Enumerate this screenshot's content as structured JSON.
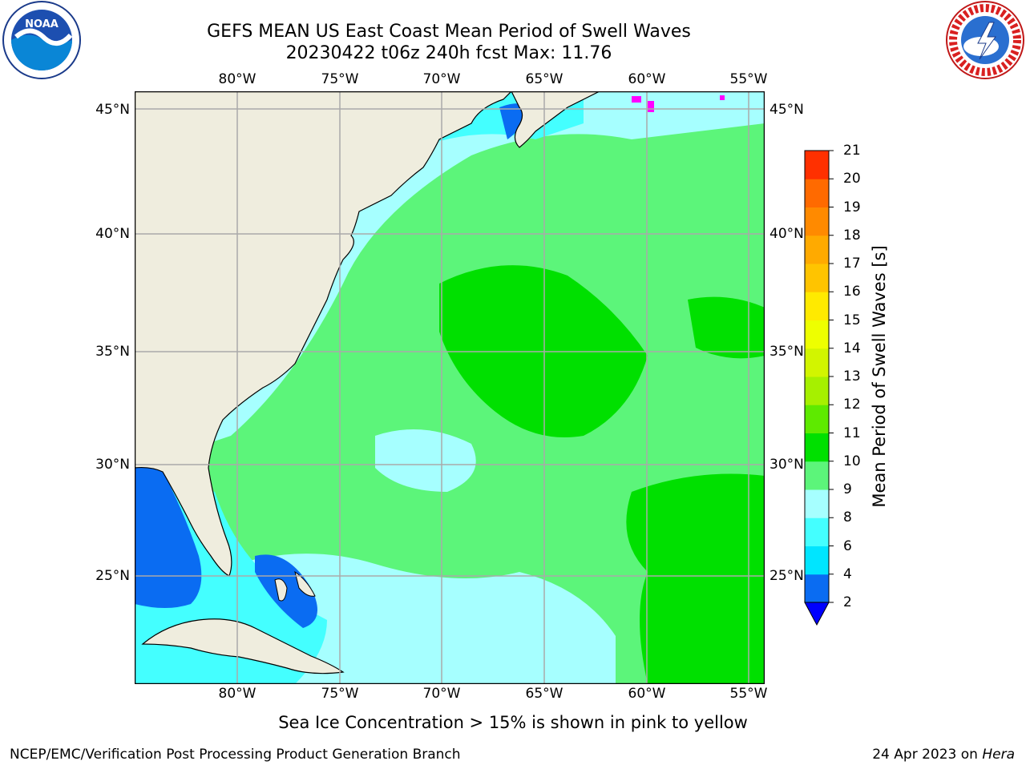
{
  "header": {
    "title_line1": "GEFS MEAN US East Coast Mean Period of Swell Waves",
    "title_line2": "20230422 t06z 240h fcst   Max: 11.76"
  },
  "logos": {
    "left": {
      "name": "noaa-logo",
      "text": "NOAA",
      "ring_text": "NATIONAL OCEANIC AND ATMOSPHERIC ADMINISTRATION · U.S. DEPARTMENT OF COMMERCE"
    },
    "right": {
      "name": "nws-logo",
      "ring_text": "NATIONAL WEATHER SERVICE"
    }
  },
  "map": {
    "lon_labels": [
      "80°W",
      "75°W",
      "70°W",
      "65°W",
      "60°W",
      "55°W"
    ],
    "lat_labels": [
      "45°N",
      "40°N",
      "35°N",
      "30°N",
      "25°N"
    ],
    "land_color": "#efedde",
    "ocean_color": "#66ff66",
    "ice_color": "#ff00ff"
  },
  "colorbar": {
    "label": "Mean Period of Swell Waves [s]",
    "ticks": [
      "2",
      "4",
      "6",
      "8",
      "9",
      "10",
      "11",
      "12",
      "13",
      "14",
      "15",
      "16",
      "17",
      "18",
      "19",
      "20",
      "21"
    ],
    "colors": [
      "#0a6cf2",
      "#00e5ff",
      "#44ffff",
      "#a6ffff",
      "#5cf57a",
      "#00e000",
      "#5eea00",
      "#a6f000",
      "#d2f500",
      "#eeff00",
      "#ffea00",
      "#ffc400",
      "#ffaa00",
      "#ff8a00",
      "#ff6a00",
      "#ff3000"
    ],
    "extend_color": "#0000ff"
  },
  "caption": "Sea Ice Concentration > 15% is shown in pink to yellow",
  "footer": {
    "left": "NCEP/EMC/Verification Post Processing Product Generation Branch",
    "right_prefix": "24 Apr 2023 on ",
    "right_host": "Hera"
  }
}
